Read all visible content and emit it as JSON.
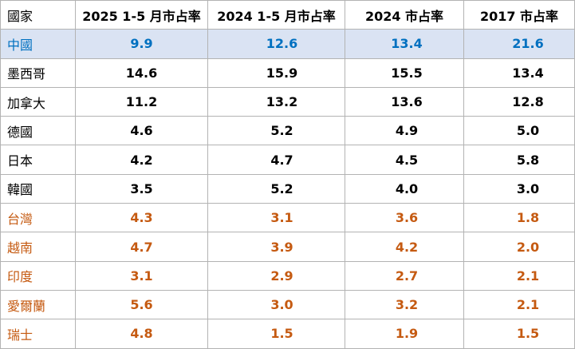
{
  "table": {
    "headers": [
      "國家",
      "2025 1-5 月市占率",
      "2024 1-5 月市占率",
      "2024 市占率",
      "2017 市占率"
    ],
    "rows": [
      {
        "style": "highlight",
        "cells": [
          "中國",
          "9.9",
          "12.6",
          "13.4",
          "21.6"
        ]
      },
      {
        "style": "normal",
        "cells": [
          "墨西哥",
          "14.6",
          "15.9",
          "15.5",
          "13.4"
        ]
      },
      {
        "style": "normal",
        "cells": [
          "加拿大",
          "11.2",
          "13.2",
          "13.6",
          "12.8"
        ]
      },
      {
        "style": "normal",
        "cells": [
          "德國",
          "4.6",
          "5.2",
          "4.9",
          "5.0"
        ]
      },
      {
        "style": "normal",
        "cells": [
          "日本",
          "4.2",
          "4.7",
          "4.5",
          "5.8"
        ]
      },
      {
        "style": "normal",
        "cells": [
          "韓國",
          "3.5",
          "5.2",
          "4.0",
          "3.0"
        ]
      },
      {
        "style": "accent",
        "cells": [
          "台灣",
          "4.3",
          "3.1",
          "3.6",
          "1.8"
        ]
      },
      {
        "style": "accent",
        "cells": [
          "越南",
          "4.7",
          "3.9",
          "4.2",
          "2.0"
        ]
      },
      {
        "style": "accent",
        "cells": [
          "印度",
          "3.1",
          "2.9",
          "2.7",
          "2.1"
        ]
      },
      {
        "style": "accent",
        "cells": [
          "愛爾蘭",
          "5.6",
          "3.0",
          "3.2",
          "2.1"
        ]
      },
      {
        "style": "accent",
        "cells": [
          "瑞士",
          "4.8",
          "1.5",
          "1.9",
          "1.5"
        ]
      }
    ]
  },
  "colors": {
    "highlight_background": "#dae3f3",
    "highlight_text": "#0070c0",
    "accent_text": "#c55a11",
    "normal_text": "#000000",
    "border": "#b3b3b3"
  }
}
